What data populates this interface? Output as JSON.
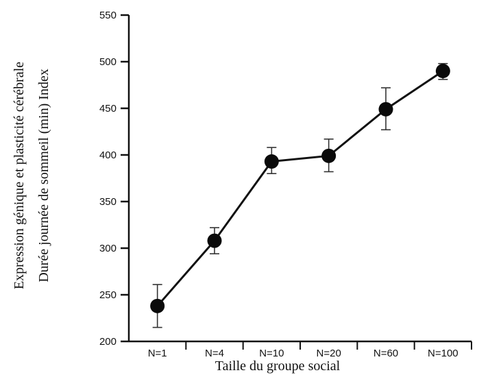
{
  "chart_data": {
    "type": "line",
    "categories": [
      "N=1",
      "N=4",
      "N=10",
      "N=20",
      "N=60",
      "N=100"
    ],
    "values": [
      238,
      308,
      393,
      399,
      449,
      490
    ],
    "error_low": [
      215,
      294,
      380,
      382,
      427,
      481
    ],
    "error_high": [
      261,
      322,
      408,
      417,
      472,
      498
    ],
    "ylabel_lines": [
      "Expression génique et plasticité cérébrale",
      "Durée journée de sommeil (min) Index"
    ],
    "xlabel": "Taille du groupe social",
    "ylim": [
      200,
      550
    ],
    "yticks": [
      200,
      250,
      300,
      350,
      400,
      450,
      500,
      550
    ],
    "grid": false,
    "colors": {
      "line": "#111111",
      "marker": "#0a0a0a",
      "axis": "#111111"
    }
  }
}
